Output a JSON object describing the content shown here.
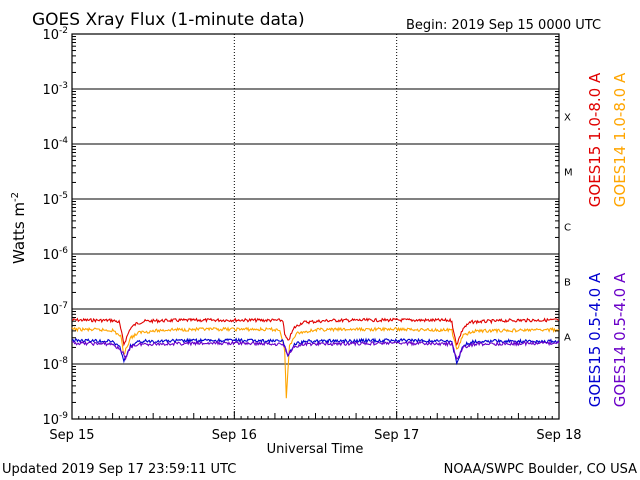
{
  "header": {
    "title": "GOES Xray Flux (1-minute data)",
    "begin": "Begin:  2019 Sep 15 0000 UTC"
  },
  "footer": {
    "updated": "Updated 2019 Sep 17 23:59:11 UTC",
    "credit": "NOAA/SWPC Boulder, CO USA"
  },
  "chart_data": {
    "type": "line",
    "title": "GOES Xray Flux (1-minute data)",
    "xlabel": "Universal Time",
    "ylabel_base": "Watts m",
    "ylabel_exp": "-2",
    "y_scale": "log",
    "ylim": [
      1e-09,
      0.01
    ],
    "xlim_days": [
      0,
      3
    ],
    "x_tick_labels": [
      "Sep 15",
      "Sep 16",
      "Sep 17",
      "Sep 18"
    ],
    "y_ticks": [
      {
        "base": "10",
        "exp": "-2"
      },
      {
        "base": "10",
        "exp": "-3"
      },
      {
        "base": "10",
        "exp": "-4"
      },
      {
        "base": "10",
        "exp": "-5"
      },
      {
        "base": "10",
        "exp": "-6"
      },
      {
        "base": "10",
        "exp": "-7"
      },
      {
        "base": "10",
        "exp": "-8"
      },
      {
        "base": "10",
        "exp": "-9"
      }
    ],
    "flare_classes": [
      {
        "label": "X",
        "flux": 0.000316
      },
      {
        "label": "M",
        "flux": 3.16e-05
      },
      {
        "label": "C",
        "flux": 3.16e-06
      },
      {
        "label": "B",
        "flux": 3.16e-07
      },
      {
        "label": "A",
        "flux": 3.16e-08
      }
    ],
    "grid": true,
    "legend_placement": "right",
    "series": [
      {
        "name": "GOES15 1.0-8.0 A",
        "color": "#e00000",
        "points": [
          [
            0,
            6.3e-08
          ],
          [
            0.25,
            6.2e-08
          ],
          [
            0.29,
            5.8e-08
          ],
          [
            0.3,
            4.4e-08
          ],
          [
            0.32,
            2.3e-08
          ],
          [
            0.36,
            4.5e-08
          ],
          [
            0.4,
            5.5e-08
          ],
          [
            0.45,
            6e-08
          ],
          [
            0.6,
            6.2e-08
          ],
          [
            1.0,
            6.3e-08
          ],
          [
            1.3,
            6.2e-08
          ],
          [
            1.31,
            3.4e-08
          ],
          [
            1.33,
            2.6e-08
          ],
          [
            1.37,
            4.6e-08
          ],
          [
            1.42,
            5.7e-08
          ],
          [
            1.6,
            6.2e-08
          ],
          [
            2.0,
            6.3e-08
          ],
          [
            2.34,
            6.2e-08
          ],
          [
            2.35,
            3.8e-08
          ],
          [
            2.37,
            2.3e-08
          ],
          [
            2.41,
            4.5e-08
          ],
          [
            2.46,
            5.8e-08
          ],
          [
            2.7,
            6.2e-08
          ],
          [
            3.0,
            6.3e-08
          ]
        ]
      },
      {
        "name": "GOES14 1.0-8.0 A",
        "color": "#ffa500",
        "points": [
          [
            0,
            4.3e-08
          ],
          [
            0.25,
            4.1e-08
          ],
          [
            0.3,
            3.2e-08
          ],
          [
            0.32,
            1.5e-08
          ],
          [
            0.36,
            3e-08
          ],
          [
            0.42,
            3.8e-08
          ],
          [
            0.6,
            4.2e-08
          ],
          [
            1.0,
            4.3e-08
          ],
          [
            1.28,
            4.2e-08
          ],
          [
            1.31,
            1.8e-08
          ],
          [
            1.32,
            2.4e-09
          ],
          [
            1.34,
            2.2e-08
          ],
          [
            1.38,
            3.6e-08
          ],
          [
            1.5,
            4.2e-08
          ],
          [
            2.0,
            4.3e-08
          ],
          [
            2.34,
            4.1e-08
          ],
          [
            2.37,
            1.8e-08
          ],
          [
            2.41,
            3.3e-08
          ],
          [
            2.48,
            4e-08
          ],
          [
            3.0,
            4.2e-08
          ]
        ]
      },
      {
        "name": "GOES15 0.5-4.0 A",
        "color": "#0000d0",
        "points": [
          [
            0,
            2.7e-08
          ],
          [
            0.25,
            2.6e-08
          ],
          [
            0.3,
            1.9e-08
          ],
          [
            0.32,
            1.1e-08
          ],
          [
            0.36,
            2.1e-08
          ],
          [
            0.42,
            2.6e-08
          ],
          [
            1.0,
            2.7e-08
          ],
          [
            1.3,
            2.6e-08
          ],
          [
            1.33,
            1.4e-08
          ],
          [
            1.37,
            2.3e-08
          ],
          [
            1.45,
            2.6e-08
          ],
          [
            2.0,
            2.7e-08
          ],
          [
            2.34,
            2.6e-08
          ],
          [
            2.37,
            1e-08
          ],
          [
            2.41,
            2.2e-08
          ],
          [
            2.48,
            2.6e-08
          ],
          [
            3.0,
            2.6e-08
          ]
        ]
      },
      {
        "name": "GOES14 0.5-4.0 A",
        "color": "#6a00c8",
        "points": [
          [
            0,
            2.4e-08
          ],
          [
            0.25,
            2.3e-08
          ],
          [
            0.31,
            1.7e-08
          ],
          [
            0.33,
            1.2e-08
          ],
          [
            0.36,
            2.1e-08
          ],
          [
            0.42,
            2.3e-08
          ],
          [
            1.0,
            2.4e-08
          ],
          [
            1.3,
            2.3e-08
          ],
          [
            1.33,
            1.5e-08
          ],
          [
            1.37,
            2.1e-08
          ],
          [
            1.45,
            2.3e-08
          ],
          [
            2.0,
            2.4e-08
          ],
          [
            2.34,
            2.3e-08
          ],
          [
            2.37,
            1.2e-08
          ],
          [
            2.41,
            2e-08
          ],
          [
            2.48,
            2.3e-08
          ],
          [
            3.0,
            2.4e-08
          ]
        ]
      }
    ]
  }
}
